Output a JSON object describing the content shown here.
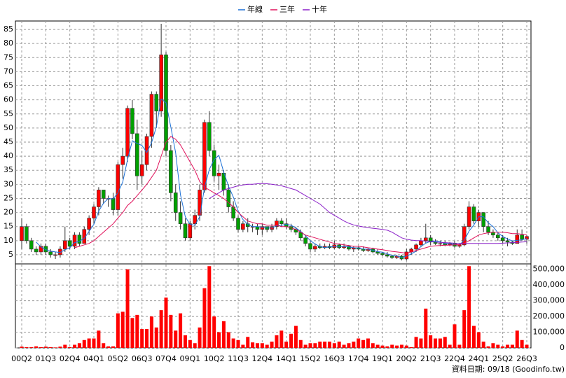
{
  "chart_data": {
    "type": "candlestick",
    "categories": [
      "00Q2",
      null,
      null,
      null,
      null,
      "01Q3",
      null,
      null,
      null,
      null,
      "02Q4",
      null,
      null,
      null,
      null,
      "04Q1",
      null,
      null,
      null,
      null,
      "05Q2",
      null,
      null,
      null,
      null,
      "06Q3",
      null,
      null,
      null,
      null,
      "07Q4",
      null,
      null,
      null,
      null,
      "09Q1",
      null,
      null,
      null,
      null,
      "10Q2",
      null,
      null,
      null,
      null,
      "11Q3",
      null,
      null,
      null,
      null,
      "12Q4",
      null,
      null,
      null,
      null,
      "14Q1",
      null,
      null,
      null,
      null,
      "15Q2",
      null,
      null,
      null,
      null,
      "16Q3",
      null,
      null,
      null,
      null,
      "17Q4",
      null,
      null,
      null,
      null,
      "19Q1",
      null,
      null,
      null,
      null,
      "20Q2",
      null,
      null,
      null,
      null,
      "21Q3",
      null,
      null,
      null,
      null,
      "22Q4",
      null,
      null,
      null,
      null,
      "24Q1",
      null,
      null,
      null,
      null,
      "25Q2",
      null,
      null,
      null,
      null,
      "26Q3"
    ],
    "open": [
      10,
      15,
      10,
      7,
      6,
      8,
      6,
      5,
      5,
      7,
      10,
      8,
      12,
      9,
      14,
      18,
      22,
      28,
      25,
      25,
      21,
      37,
      40,
      57,
      48,
      33,
      37,
      47,
      62,
      56,
      76,
      42,
      27,
      20,
      16,
      11,
      16,
      19,
      28,
      52,
      42,
      33,
      34,
      28,
      22,
      18,
      14,
      16,
      15,
      15,
      14,
      15,
      14,
      15,
      17,
      16,
      15,
      14,
      13,
      11,
      9,
      7,
      8,
      7.5,
      8,
      7.5,
      8.5,
      7.5,
      8,
      7,
      7.5,
      7,
      6.5,
      7,
      6,
      5.5,
      5,
      4.5,
      4,
      4.5,
      3.5,
      6,
      7,
      8.5,
      10,
      11,
      9.5,
      9,
      9,
      8.5,
      9,
      8,
      8.5,
      15,
      22,
      17,
      20,
      15,
      13,
      12,
      11,
      10,
      9.5,
      9,
      12,
      10.5
    ],
    "high": [
      18,
      16,
      11,
      8,
      9,
      9,
      7,
      6,
      8,
      15,
      11,
      13,
      13,
      15,
      19,
      23,
      29,
      28,
      26,
      27,
      38,
      43,
      58,
      60,
      53,
      42,
      48,
      63,
      63,
      87,
      77,
      44,
      30,
      24,
      18,
      17,
      21,
      30,
      53,
      56,
      44,
      37,
      35,
      30,
      24,
      19,
      17,
      18,
      16,
      16,
      16,
      15,
      16,
      18,
      18,
      18,
      16,
      15,
      14,
      12,
      10,
      9,
      9,
      9,
      9,
      10,
      9,
      9,
      8.5,
      8,
      8,
      8,
      7.5,
      7.5,
      7,
      6,
      6,
      5,
      5,
      5,
      7,
      7.5,
      9,
      11,
      16,
      12,
      10.5,
      10,
      10,
      9.5,
      10,
      9,
      16,
      24,
      23,
      21,
      20,
      17,
      14,
      13,
      12,
      11,
      10,
      14,
      14,
      12
    ],
    "low": [
      7,
      9,
      6,
      5,
      5,
      5,
      4,
      3.5,
      4,
      6,
      7,
      7,
      8,
      9,
      12,
      16,
      19,
      23,
      22,
      19,
      19,
      32,
      38,
      46,
      28,
      30,
      35,
      43,
      50,
      54,
      40,
      24,
      17,
      14,
      10,
      10,
      14,
      17,
      27,
      40,
      31,
      28,
      26,
      20,
      17,
      13,
      13,
      13,
      13,
      12,
      12,
      13,
      13,
      14,
      15,
      14,
      13,
      12,
      10,
      8,
      6,
      6,
      7,
      7,
      7,
      7,
      7,
      7,
      6.5,
      6,
      6.5,
      6,
      6,
      5.5,
      5,
      4.5,
      4,
      3.5,
      3.5,
      3,
      3,
      5,
      6,
      8,
      9,
      8.5,
      8.5,
      8,
      8,
      8,
      7.5,
      7.5,
      8,
      14,
      16,
      15,
      13,
      12,
      11,
      10,
      9,
      8,
      8.5,
      9,
      10,
      9
    ],
    "close": [
      15,
      10,
      7,
      6,
      8,
      6,
      5,
      5,
      7,
      10,
      8,
      12,
      9,
      14,
      18,
      22,
      28,
      25,
      25,
      21,
      37,
      40,
      57,
      48,
      33,
      37,
      47,
      62,
      56,
      76,
      42,
      27,
      20,
      16,
      11,
      16,
      19,
      28,
      52,
      42,
      33,
      34,
      28,
      22,
      18,
      14,
      16,
      15,
      15,
      14,
      15,
      14,
      15,
      17,
      16,
      15,
      14,
      13,
      11,
      9,
      7,
      8,
      7.5,
      8,
      7.5,
      8.5,
      7.5,
      8,
      7,
      7.5,
      7,
      6.5,
      7,
      6,
      5.5,
      5,
      4.5,
      4,
      4.5,
      3.5,
      6,
      7,
      8.5,
      10,
      11,
      9.5,
      9,
      9,
      8.5,
      9,
      8,
      8.5,
      15,
      22,
      17,
      20,
      15,
      13,
      12,
      11,
      10,
      9.5,
      9,
      12,
      10.5,
      11.5
    ],
    "up_color": "#ff0000",
    "down_color": "#00a000",
    "volume": [
      8000,
      5000,
      5000,
      10000,
      5000,
      8000,
      5000,
      3000,
      8000,
      20000,
      5000,
      20000,
      30000,
      50000,
      60000,
      60000,
      110000,
      30000,
      10000,
      10000,
      220000,
      230000,
      500000,
      190000,
      210000,
      120000,
      120000,
      200000,
      130000,
      240000,
      320000,
      210000,
      110000,
      220000,
      80000,
      50000,
      30000,
      130000,
      380000,
      520000,
      200000,
      100000,
      170000,
      100000,
      60000,
      50000,
      20000,
      70000,
      35000,
      30000,
      30000,
      20000,
      40000,
      80000,
      110000,
      40000,
      90000,
      140000,
      50000,
      20000,
      30000,
      30000,
      40000,
      40000,
      40000,
      30000,
      40000,
      20000,
      30000,
      40000,
      60000,
      50000,
      60000,
      30000,
      20000,
      15000,
      10000,
      20000,
      15000,
      20000,
      15000,
      5000,
      70000,
      60000,
      250000,
      80000,
      60000,
      60000,
      70000,
      20000,
      150000,
      20000,
      240000,
      520000,
      140000,
      100000,
      40000,
      10000,
      30000,
      20000,
      10000,
      20000,
      20000,
      110000,
      50000,
      20000
    ],
    "volume_color": "#ff0000",
    "lines": [
      {
        "name": "年線",
        "color": "#1a6fd6",
        "values": [
          null,
          null,
          null,
          9.5,
          7.8,
          6.8,
          6.3,
          6,
          5.8,
          6.8,
          7.5,
          9.3,
          9.8,
          10.8,
          13.3,
          15.8,
          20.5,
          23.3,
          25,
          24.8,
          27,
          30.8,
          38.8,
          45.5,
          44.5,
          43.8,
          41.3,
          44.8,
          50.5,
          60.3,
          59,
          50.3,
          41.3,
          26.3,
          18.5,
          15.8,
          15.5,
          18.5,
          28.8,
          35.3,
          38.8,
          40.3,
          34.3,
          29.3,
          25.5,
          20.5,
          17.5,
          15.8,
          15,
          15,
          14.8,
          14.5,
          14.5,
          15.3,
          15.5,
          15.8,
          15.5,
          14.5,
          13.3,
          11.8,
          10,
          8.8,
          7.9,
          7.6,
          7.8,
          7.9,
          7.9,
          7.9,
          7.8,
          7.5,
          7.4,
          7,
          7,
          6.6,
          6.1,
          5.9,
          5.3,
          4.8,
          4.5,
          4.1,
          4.5,
          5.3,
          6.3,
          7.9,
          9.1,
          9.8,
          9.9,
          9.6,
          9,
          8.9,
          8.6,
          8.5,
          10.1,
          13.4,
          15.6,
          18.5,
          18.5,
          16.3,
          15,
          12.8,
          11.5,
          10.6,
          9.9,
          10.1,
          10.3,
          10.8
        ]
      },
      {
        "name": "三年",
        "color": "#e0105a",
        "values": [
          null,
          null,
          null,
          null,
          null,
          null,
          null,
          null,
          null,
          null,
          null,
          7.5,
          8,
          8.5,
          9,
          10,
          11.5,
          13,
          14.5,
          16,
          18,
          20,
          22.5,
          24,
          26,
          28,
          30,
          32.5,
          35,
          40,
          45,
          47,
          46,
          44,
          41,
          38,
          35,
          31,
          29,
          28,
          27,
          26,
          25,
          23.5,
          22,
          20,
          18.5,
          17,
          16.5,
          16,
          16,
          15.5,
          15.5,
          15.5,
          15,
          15,
          14.5,
          14,
          13,
          12,
          11.5,
          11,
          10.5,
          10,
          9.5,
          9,
          8.8,
          8.5,
          8.3,
          8,
          8,
          7.8,
          7.5,
          7.3,
          7,
          6.8,
          6.5,
          6.2,
          6,
          5.8,
          5.5,
          6,
          6.5,
          7,
          7.5,
          8,
          8.2,
          8.3,
          8.4,
          8.4,
          8.5,
          8.6,
          9,
          10,
          11,
          12,
          12.5,
          12.8,
          13,
          13,
          13,
          12.8,
          12.5,
          12.5,
          12.3,
          12
        ]
      },
      {
        "name": "十年",
        "color": "#8a1fc8",
        "values": [
          null,
          null,
          null,
          null,
          null,
          null,
          null,
          null,
          null,
          null,
          null,
          null,
          null,
          null,
          null,
          null,
          null,
          null,
          null,
          null,
          null,
          null,
          null,
          null,
          null,
          null,
          null,
          null,
          null,
          null,
          null,
          null,
          null,
          null,
          null,
          null,
          null,
          null,
          null,
          25,
          26,
          27,
          28,
          28.5,
          29,
          29.5,
          29.8,
          30,
          30,
          30.2,
          30.3,
          30.2,
          30,
          29.8,
          29.5,
          29,
          28.5,
          28,
          27,
          26,
          25,
          24,
          23,
          21.5,
          20,
          19,
          18,
          17,
          16.2,
          15.6,
          15.2,
          14.9,
          14.6,
          14.4,
          14.2,
          14,
          13.7,
          13,
          12,
          11,
          10.5,
          10.2,
          10,
          10,
          9.8,
          9.7,
          9.5,
          9.4,
          9.3,
          9.2,
          9.1,
          9,
          9,
          9,
          9,
          9,
          9,
          9,
          9,
          9,
          9.1,
          9.2,
          9.3,
          9.4,
          9.5,
          9.6
        ]
      }
    ],
    "ylim": [
      2,
      88
    ],
    "yticks": [
      5,
      10,
      15,
      20,
      25,
      30,
      35,
      40,
      45,
      50,
      55,
      60,
      65,
      70,
      75,
      80,
      85
    ],
    "y2lim": [
      0,
      530000
    ],
    "y2ticks": [
      0,
      {
        "value": 100000,
        "label": "100,000"
      },
      {
        "value": 200000,
        "label": "200,000"
      },
      {
        "value": 300000,
        "label": "300,000"
      },
      {
        "value": 400000,
        "label": "400,000"
      },
      {
        "value": 500000,
        "label": "500,000"
      }
    ],
    "grid": true,
    "footnote": "資料日期: 09/18 (Goodinfo.tw)"
  }
}
